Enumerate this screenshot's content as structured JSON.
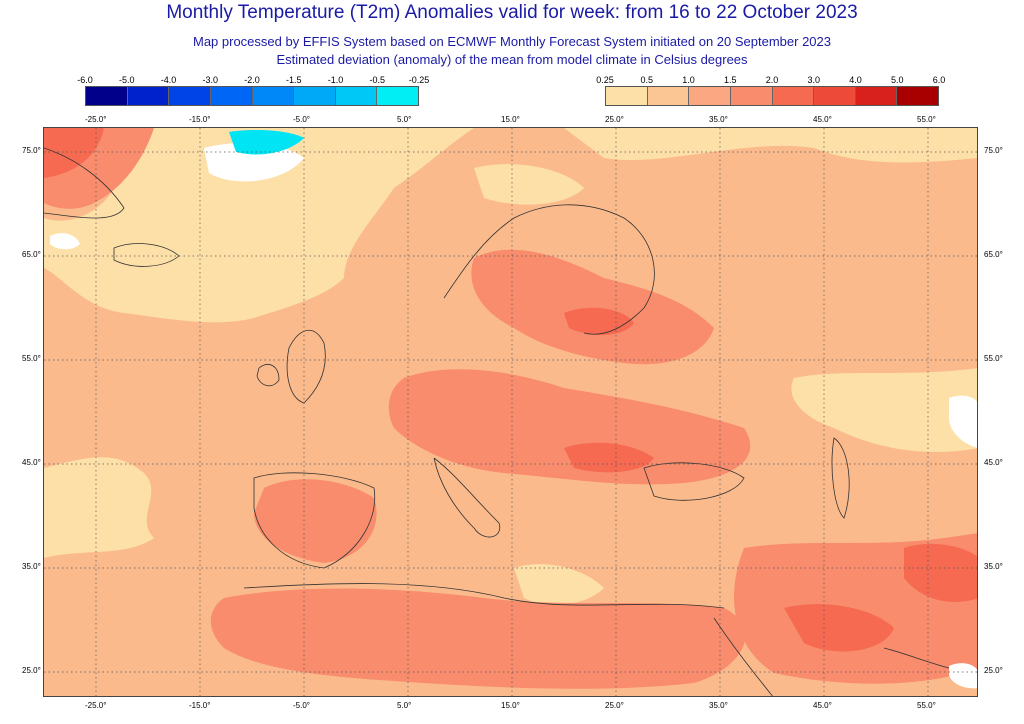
{
  "title": "Monthly Temperature (T2m) Anomalies valid for week: from 16 to 22 October 2023",
  "subtitle1": "Map processed by EFFIS System based on ECMWF Monthly Forecast System initiated on 20 September 2023",
  "subtitle2": "Estimated deviation (anomaly) of the mean from model climate in Celsius degrees",
  "legend_negative": {
    "ticks": [
      "-6.0",
      "-5.0",
      "-4.0",
      "-3.0",
      "-2.0",
      "-1.5",
      "-1.0",
      "-0.5",
      "-0.25"
    ],
    "colors": [
      "#00008b",
      "#0022cc",
      "#0044e8",
      "#0066f5",
      "#0088f8",
      "#00a8f8",
      "#00c8f6",
      "#00eef4"
    ]
  },
  "legend_positive": {
    "ticks": [
      "0.25",
      "0.5",
      "1.0",
      "1.5",
      "2.0",
      "3.0",
      "4.0",
      "5.0",
      "6.0"
    ],
    "colors": [
      "#fde0a8",
      "#fcc594",
      "#fba882",
      "#f88c6c",
      "#f56a50",
      "#ee4a3a",
      "#d8201c",
      "#a80000"
    ]
  },
  "axes": {
    "longitude_labels": [
      "-25.0°",
      "-15.0°",
      "-5.0°",
      "5.0°",
      "15.0°",
      "25.0°",
      "35.0°",
      "45.0°",
      "55.0°"
    ],
    "latitude_labels": [
      "75.0°",
      "65.0°",
      "55.0°",
      "45.0°",
      "35.0°",
      "25.0°"
    ]
  }
}
